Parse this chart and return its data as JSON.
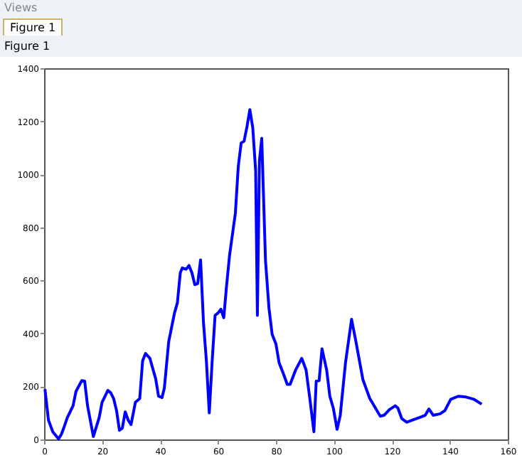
{
  "chart_data": {
    "type": "line",
    "title": "Figure 1",
    "annotations": [
      "Views",
      "Figure 1"
    ],
    "x": [
      0.3,
      1.5,
      3,
      5,
      6,
      7,
      8,
      10,
      11,
      13,
      14,
      15,
      17,
      19,
      20,
      22,
      23,
      24,
      25,
      26,
      27,
      28,
      29,
      30,
      31.5,
      33,
      34,
      35,
      36.5,
      38.5,
      39.5,
      40.7,
      41.5,
      43,
      45,
      46,
      47,
      47.7,
      49,
      50,
      51,
      52,
      53,
      54,
      55,
      56,
      57,
      58,
      59,
      60,
      61,
      62,
      63,
      64,
      66,
      67,
      68,
      69,
      70,
      71,
      72,
      73,
      73.6,
      74.3,
      75.1,
      76.4,
      77.6,
      78.7,
      80,
      81.1,
      82.4,
      83.9,
      84.9,
      86.8,
      88.9,
      90.4,
      91.7,
      93.1,
      93.9,
      94.9,
      95.9,
      97.5,
      98.6,
      99.8,
      101.1,
      102.2,
      104,
      106.1,
      107.6,
      110,
      112.4,
      116,
      117.3,
      119.2,
      121.2,
      122.1,
      123.4,
      125.1,
      127,
      129.4,
      131.5,
      132.8,
      134.3,
      136.7,
      138.3,
      140.3,
      142.9,
      145.6,
      148.4,
      151
    ],
    "series": [
      {
        "color": "#0000ff",
        "values": [
          190,
          73,
          29,
          2,
          20,
          50,
          82,
          127,
          181,
          222,
          220,
          127,
          11,
          82,
          140,
          185,
          176,
          154,
          109,
          34,
          43,
          104,
          73,
          56,
          140,
          154,
          297,
          324,
          306,
          229,
          163,
          158,
          194,
          369,
          477,
          516,
          629,
          647,
          642,
          656,
          629,
          584,
          588,
          677,
          441,
          297,
          100,
          297,
          468,
          477,
          491,
          459,
          584,
          695,
          853,
          1029,
          1118,
          1125,
          1179,
          1244,
          1176,
          1014,
          468,
          1050,
          1136,
          674,
          495,
          396,
          360,
          289,
          253,
          208,
          208,
          262,
          306,
          262,
          154,
          29,
          220,
          222,
          342,
          262,
          163,
          118,
          38,
          91,
          289,
          453,
          369,
          226,
          154,
          88,
          91,
          113,
          127,
          118,
          79,
          65,
          73,
          82,
          91,
          115,
          91,
          97,
          109,
          151,
          163,
          160,
          151,
          133
        ]
      }
    ],
    "xlim": [
      0,
      160
    ],
    "ylim": [
      0,
      1400
    ],
    "xticks": [
      0,
      20,
      40,
      60,
      80,
      100,
      120,
      140,
      160
    ],
    "yticks": [
      0,
      200,
      400,
      600,
      800,
      1000,
      1200,
      1400
    ],
    "grid": false,
    "marker": "none",
    "line_style": "solid"
  }
}
